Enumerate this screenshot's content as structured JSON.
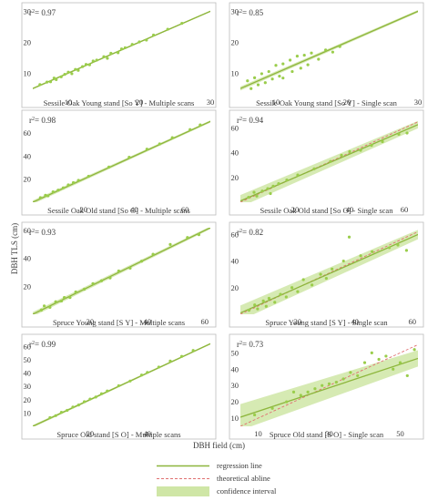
{
  "figure": {
    "ylabel": "DBH TLS (cm)",
    "xlabel": "DBH field (cm)",
    "legend": [
      {
        "label": "regression line",
        "kind": "line",
        "color": "#8db63c"
      },
      {
        "label": "theoretical abline",
        "kind": "dashed",
        "color": "#e07070"
      },
      {
        "label": "confidence interval",
        "kind": "band",
        "color": "#cfe6a6"
      }
    ]
  },
  "chart_data": [
    {
      "type": "scatter",
      "title": "Sessile Oak Young stand [So Y] - Multiple scans",
      "r2": "0.97",
      "xlim": [
        5,
        30
      ],
      "ylim": [
        3,
        31
      ],
      "xticks": [
        10,
        20,
        30
      ],
      "yticks": [
        10,
        20,
        30
      ],
      "regression": {
        "slope": 1.0,
        "intercept": 0.0,
        "ci": 0.2
      },
      "points": [
        [
          6,
          6.3
        ],
        [
          7,
          7.1
        ],
        [
          7.5,
          7.2
        ],
        [
          8,
          8.4
        ],
        [
          8.3,
          7.9
        ],
        [
          9,
          8.8
        ],
        [
          9.5,
          9.6
        ],
        [
          10,
          10.3
        ],
        [
          10.5,
          9.8
        ],
        [
          11,
          11.2
        ],
        [
          11.4,
          10.9
        ],
        [
          12,
          12.1
        ],
        [
          12.5,
          12.8
        ],
        [
          13,
          12.7
        ],
        [
          13.5,
          13.9
        ],
        [
          14,
          14.2
        ],
        [
          15,
          15.3
        ],
        [
          15.5,
          14.8
        ],
        [
          16,
          16.4
        ],
        [
          17,
          16.6
        ],
        [
          17.5,
          17.8
        ],
        [
          18,
          18.2
        ],
        [
          19,
          19.3
        ],
        [
          20,
          20.1
        ],
        [
          21,
          20.7
        ],
        [
          22,
          22.3
        ],
        [
          24,
          24.2
        ],
        [
          26,
          26.1
        ]
      ]
    },
    {
      "type": "scatter",
      "title": "Sessile Oak Young stand [So Y] - Single scan",
      "r2": "0.85",
      "xlim": [
        5,
        30
      ],
      "ylim": [
        3,
        31
      ],
      "xticks": [
        10,
        20,
        30
      ],
      "yticks": [
        10,
        20,
        30
      ],
      "regression": {
        "slope": 1.0,
        "intercept": 0.0,
        "ci": 0.4
      },
      "points": [
        [
          6,
          7.5
        ],
        [
          6.5,
          5
        ],
        [
          7,
          8.5
        ],
        [
          7.5,
          6.2
        ],
        [
          8,
          9.8
        ],
        [
          8.5,
          6.9
        ],
        [
          9,
          10.5
        ],
        [
          9.5,
          8.1
        ],
        [
          10,
          12.5
        ],
        [
          10.5,
          9
        ],
        [
          11,
          13
        ],
        [
          11,
          8.4
        ],
        [
          12,
          14.2
        ],
        [
          12.3,
          10.5
        ],
        [
          13,
          15.5
        ],
        [
          13.5,
          11.6
        ],
        [
          14,
          15.8
        ],
        [
          14.5,
          12.7
        ],
        [
          15,
          16.5
        ],
        [
          16,
          14.5
        ],
        [
          17,
          17.5
        ],
        [
          18,
          16.8
        ],
        [
          19,
          18.6
        ]
      ]
    },
    {
      "type": "scatter",
      "title": "Sessile Oak Old stand [So O] - Multiple scans",
      "r2": "0.98",
      "xlim": [
        0,
        70
      ],
      "ylim": [
        0,
        75
      ],
      "xticks": [
        20,
        40,
        60
      ],
      "yticks": [
        20,
        40,
        60
      ],
      "regression": {
        "slope": 1.0,
        "intercept": 0.0,
        "ci": 1.0
      },
      "points": [
        [
          3,
          4
        ],
        [
          5,
          6
        ],
        [
          6,
          5.5
        ],
        [
          8,
          9
        ],
        [
          10,
          10.5
        ],
        [
          12,
          12.5
        ],
        [
          14,
          15
        ],
        [
          16,
          17
        ],
        [
          18,
          19
        ],
        [
          22,
          22.5
        ],
        [
          30,
          30.5
        ],
        [
          38,
          39
        ],
        [
          45,
          46
        ],
        [
          50,
          50.5
        ],
        [
          55,
          56
        ],
        [
          62,
          63
        ],
        [
          66,
          67
        ]
      ]
    },
    {
      "type": "scatter",
      "title": "Sessile Oak Old stand [So O] - Single scan",
      "r2": "0.94",
      "xlim": [
        0,
        65
      ],
      "ylim": [
        0,
        70
      ],
      "xticks": [
        20,
        40,
        60
      ],
      "yticks": [
        20,
        40,
        60
      ],
      "regression": {
        "slope": 0.95,
        "intercept": 1.0,
        "ci": 3.0
      },
      "points": [
        [
          3,
          4
        ],
        [
          5,
          8
        ],
        [
          6,
          5
        ],
        [
          8,
          9
        ],
        [
          10,
          11
        ],
        [
          11,
          7
        ],
        [
          12,
          13
        ],
        [
          14,
          15
        ],
        [
          17,
          18
        ],
        [
          21,
          22
        ],
        [
          27,
          27
        ],
        [
          33,
          33
        ],
        [
          37,
          38
        ],
        [
          40,
          41
        ],
        [
          44,
          42
        ],
        [
          48,
          46
        ],
        [
          52,
          49
        ],
        [
          58,
          55
        ],
        [
          61,
          56
        ]
      ]
    },
    {
      "type": "scatter",
      "title": "Spruce Young stand [S Y] - Multiple scans",
      "r2": "0.93",
      "xlim": [
        0,
        62
      ],
      "ylim": [
        0,
        62
      ],
      "xticks": [
        20,
        40,
        60
      ],
      "yticks": [
        20,
        40,
        60
      ],
      "regression": {
        "slope": 1.0,
        "intercept": 0.0,
        "ci": 1.0
      },
      "points": [
        [
          3,
          3
        ],
        [
          4,
          6
        ],
        [
          6,
          5
        ],
        [
          8,
          9
        ],
        [
          10,
          9.5
        ],
        [
          11,
          12
        ],
        [
          13,
          12
        ],
        [
          15,
          16
        ],
        [
          18,
          18
        ],
        [
          21,
          22
        ],
        [
          24,
          24
        ],
        [
          27,
          26
        ],
        [
          30,
          31
        ],
        [
          34,
          33
        ],
        [
          38,
          38
        ],
        [
          42,
          43
        ],
        [
          48,
          50
        ],
        [
          54,
          55
        ],
        [
          58,
          57
        ]
      ]
    },
    {
      "type": "scatter",
      "title": "Spruce Young stand [S Y] - Single scan",
      "r2": "0.82",
      "xlim": [
        0,
        62
      ],
      "ylim": [
        0,
        65
      ],
      "xticks": [
        20,
        40,
        60
      ],
      "yticks": [
        20,
        40,
        60
      ],
      "regression": {
        "slope": 0.95,
        "intercept": 1.0,
        "ci": 3.5
      },
      "points": [
        [
          3,
          3
        ],
        [
          5,
          7
        ],
        [
          6,
          4
        ],
        [
          8,
          10
        ],
        [
          9,
          6
        ],
        [
          10,
          12
        ],
        [
          12,
          9
        ],
        [
          14,
          15
        ],
        [
          16,
          13
        ],
        [
          18,
          20
        ],
        [
          20,
          17
        ],
        [
          22,
          26
        ],
        [
          25,
          22
        ],
        [
          28,
          30
        ],
        [
          30,
          27
        ],
        [
          32,
          34
        ],
        [
          36,
          40
        ],
        [
          38,
          58
        ],
        [
          42,
          44
        ],
        [
          46,
          47
        ],
        [
          52,
          50
        ],
        [
          55,
          52
        ],
        [
          58,
          48
        ]
      ]
    },
    {
      "type": "scatter",
      "title": "Spruce Old stand [S O] - Multiple scans",
      "r2": "0.99",
      "xlim": [
        0,
        62
      ],
      "ylim": [
        0,
        65
      ],
      "xticks": [
        20,
        40
      ],
      "yticks": [
        10,
        20,
        30,
        40,
        50,
        60
      ],
      "regression": {
        "slope": 1.0,
        "intercept": 0.0,
        "ci": 0.6
      },
      "points": [
        [
          6,
          6.5
        ],
        [
          8,
          8
        ],
        [
          10,
          10.5
        ],
        [
          12,
          12
        ],
        [
          14,
          14.5
        ],
        [
          16,
          16
        ],
        [
          18,
          18.5
        ],
        [
          20,
          20.5
        ],
        [
          22,
          22
        ],
        [
          24,
          24.5
        ],
        [
          26,
          26.5
        ],
        [
          30,
          30.5
        ],
        [
          34,
          34
        ],
        [
          38,
          38.5
        ],
        [
          40,
          40.5
        ],
        [
          44,
          44.5
        ],
        [
          48,
          49
        ],
        [
          52,
          52.5
        ],
        [
          56,
          57
        ]
      ]
    },
    {
      "type": "scatter",
      "title": "Spruce Old stand [S O] - Single scan",
      "r2": "0.73",
      "xlim": [
        5,
        55
      ],
      "ylim": [
        5,
        58
      ],
      "xticks": [
        10,
        30,
        50
      ],
      "yticks": [
        10,
        20,
        30,
        40,
        50
      ],
      "regression": {
        "slope": 0.72,
        "intercept": 7.0,
        "ci": 5.0
      },
      "points": [
        [
          9,
          12
        ],
        [
          14,
          16
        ],
        [
          18,
          20
        ],
        [
          20,
          26
        ],
        [
          22,
          24
        ],
        [
          24,
          26
        ],
        [
          26,
          28
        ],
        [
          28,
          30
        ],
        [
          30,
          31
        ],
        [
          32,
          32
        ],
        [
          34,
          34
        ],
        [
          36,
          38
        ],
        [
          38,
          36
        ],
        [
          40,
          44
        ],
        [
          42,
          50
        ],
        [
          44,
          46
        ],
        [
          46,
          48
        ],
        [
          48,
          40
        ],
        [
          50,
          44
        ],
        [
          52,
          36
        ],
        [
          54,
          52
        ]
      ]
    }
  ]
}
